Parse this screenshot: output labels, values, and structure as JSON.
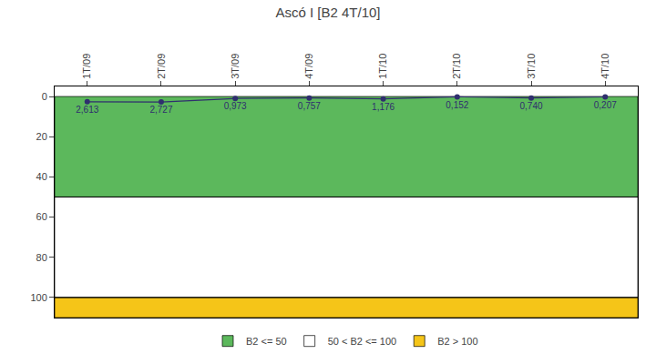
{
  "chart_data": {
    "type": "line",
    "title": "Ascó I [B2 4T/10]",
    "categories": [
      "1T/09",
      "2T/09",
      "3T/09",
      "4T/09",
      "1T/10",
      "2T/10",
      "3T/10",
      "4T/10"
    ],
    "values": [
      2.613,
      2.727,
      0.973,
      0.757,
      1.176,
      0.152,
      0.74,
      0.207
    ],
    "value_labels": [
      "2,613",
      "2,727",
      "0,973",
      "0,757",
      "1,176",
      "0,152",
      "0,740",
      "0,207"
    ],
    "data_labels": true,
    "color": "#2f2f6e",
    "marker": "circle",
    "ylim": [
      110,
      -5
    ],
    "yticks": [
      0,
      20,
      40,
      60,
      80,
      100
    ],
    "grid": false,
    "legend": "bottom",
    "bands": [
      {
        "name": "B2 <= 50",
        "color": "#5cb85c",
        "from": 0,
        "to": 50
      },
      {
        "name": "50 < B2 <= 100",
        "color": "#ffffff",
        "from": 50,
        "to": 100
      },
      {
        "name": "B2 > 100",
        "color": "#f5c518",
        "from": 100,
        "to": 110
      }
    ],
    "hlines": [
      50,
      100
    ]
  }
}
